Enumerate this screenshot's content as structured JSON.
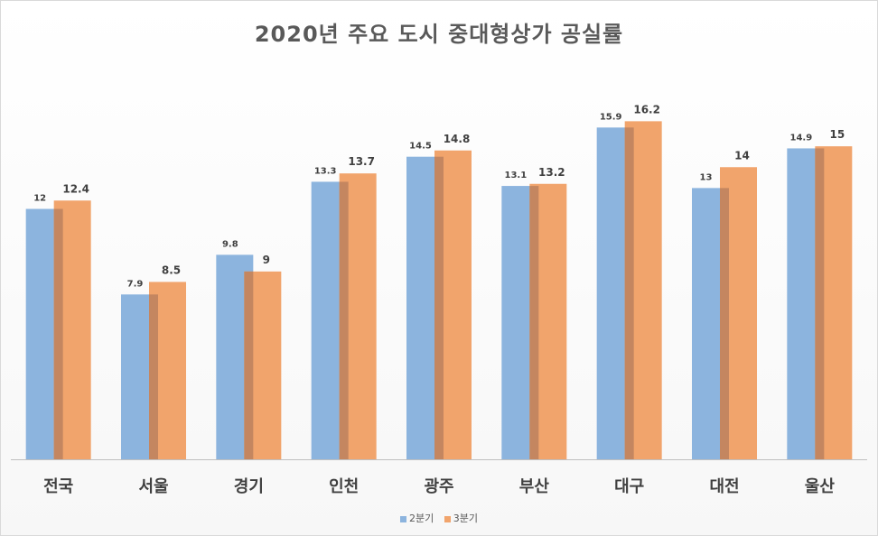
{
  "chart_data": {
    "type": "bar",
    "title": "2020년 주요 도시 중대형상가 공실률",
    "categories": [
      "전국",
      "서울",
      "경기",
      "인천",
      "광주",
      "부산",
      "대구",
      "대전",
      "울산"
    ],
    "series": [
      {
        "name": "2분기",
        "color": "#8cb4de",
        "values": [
          12,
          7.9,
          9.8,
          13.3,
          14.5,
          13.1,
          15.9,
          13,
          14.9
        ]
      },
      {
        "name": "3분기",
        "color": "#f1a46c",
        "values": [
          12.4,
          8.5,
          9,
          13.7,
          14.8,
          13.2,
          16.2,
          14,
          15
        ]
      }
    ],
    "ylim": [
      0,
      19.2
    ],
    "grid": false,
    "legend": "bottom"
  }
}
